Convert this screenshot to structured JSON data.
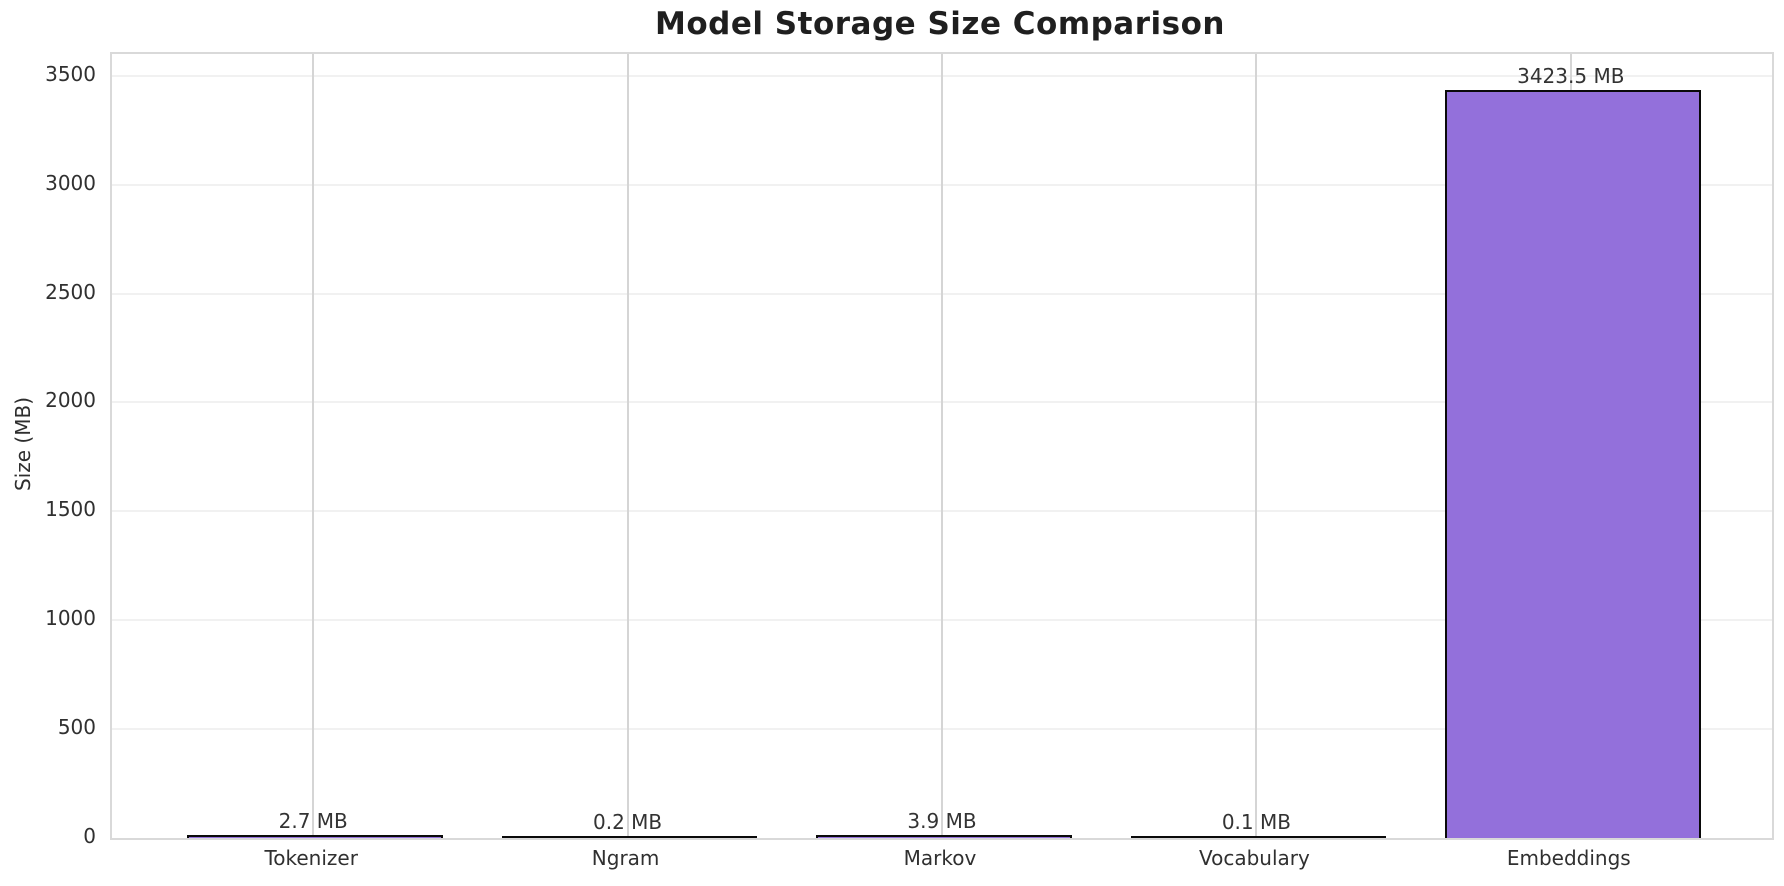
{
  "chart_data": {
    "type": "bar",
    "title": "Model Storage Size Comparison",
    "xlabel": "",
    "ylabel": "Size (MB)",
    "categories": [
      "Tokenizer",
      "Ngram",
      "Markov",
      "Vocabulary",
      "Embeddings"
    ],
    "values": [
      2.7,
      0.2,
      3.9,
      0.1,
      3423.5
    ],
    "value_labels": [
      "2.7 MB",
      "0.2 MB",
      "3.9 MB",
      "0.1 MB",
      "3423.5 MB"
    ],
    "ylim": [
      0,
      3600
    ],
    "yticks": [
      0,
      500,
      1000,
      1500,
      2000,
      2500,
      3000,
      3500
    ],
    "grid": true,
    "legend": false,
    "bar_color": "#9370DB",
    "bar_edge_color": "#0a0a0a"
  }
}
